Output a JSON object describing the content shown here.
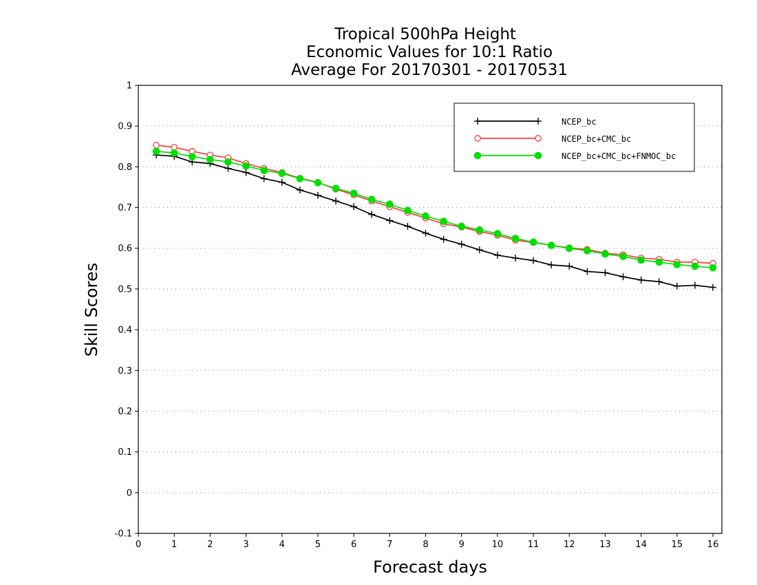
{
  "chart_data": {
    "type": "line",
    "title_lines": [
      "Tropical 500hPa Height",
      "Economic Values for 10:1 Ratio",
      "Average For 20170301 - 20170531"
    ],
    "xlabel": "Forecast days",
    "ylabel": "Skill Scores",
    "xlim": [
      0,
      16.25
    ],
    "ylim": [
      -0.1,
      1
    ],
    "xticks": [
      0,
      1,
      2,
      3,
      4,
      5,
      6,
      7,
      8,
      9,
      10,
      11,
      12,
      13,
      14,
      15,
      16
    ],
    "yticks": [
      -0.1,
      0,
      0.1,
      0.2,
      0.3,
      0.4,
      0.5,
      0.6,
      0.7,
      0.8,
      0.9,
      1
    ],
    "ytick_labels": [
      "-0.1",
      "0",
      "0.1",
      "0.2",
      "0.3",
      "0.4",
      "0.5",
      "0.6",
      "0.7",
      "0.8",
      "0.9",
      "1"
    ],
    "grid": "horizontal dotted",
    "legend_position": "top-right",
    "x": [
      0.5,
      1,
      1.5,
      2,
      2.5,
      3,
      3.5,
      4,
      4.5,
      5,
      5.5,
      6,
      6.5,
      7,
      7.5,
      8,
      8.5,
      9,
      9.5,
      10,
      10.5,
      11,
      11.5,
      12,
      12.5,
      13,
      13.5,
      14,
      14.5,
      15,
      15.5,
      16
    ],
    "series": [
      {
        "name": "NCEP_bc",
        "color": "#000000",
        "marker": "plus",
        "values": [
          0.829,
          0.826,
          0.812,
          0.808,
          0.796,
          0.786,
          0.771,
          0.762,
          0.743,
          0.73,
          0.716,
          0.702,
          0.683,
          0.668,
          0.654,
          0.637,
          0.622,
          0.61,
          0.596,
          0.583,
          0.576,
          0.57,
          0.559,
          0.556,
          0.543,
          0.54,
          0.53,
          0.522,
          0.518,
          0.507,
          0.509,
          0.504
        ]
      },
      {
        "name": "NCEP_bc+CMC_bc",
        "color": "#ff3b3b",
        "marker": "open-circle",
        "values": [
          0.853,
          0.848,
          0.838,
          0.829,
          0.822,
          0.808,
          0.796,
          0.786,
          0.772,
          0.762,
          0.745,
          0.731,
          0.716,
          0.702,
          0.688,
          0.674,
          0.66,
          0.652,
          0.641,
          0.632,
          0.62,
          0.614,
          0.607,
          0.601,
          0.597,
          0.588,
          0.584,
          0.576,
          0.573,
          0.566,
          0.566,
          0.563
        ]
      },
      {
        "name": "NCEP_bc+CMC_bc+FNMOC_bc",
        "color": "#00e000",
        "marker": "filled-circle",
        "values": [
          0.838,
          0.834,
          0.825,
          0.818,
          0.812,
          0.802,
          0.791,
          0.784,
          0.771,
          0.761,
          0.747,
          0.735,
          0.72,
          0.708,
          0.693,
          0.679,
          0.666,
          0.654,
          0.645,
          0.636,
          0.624,
          0.615,
          0.607,
          0.6,
          0.594,
          0.586,
          0.58,
          0.571,
          0.566,
          0.56,
          0.556,
          0.552
        ]
      }
    ]
  }
}
